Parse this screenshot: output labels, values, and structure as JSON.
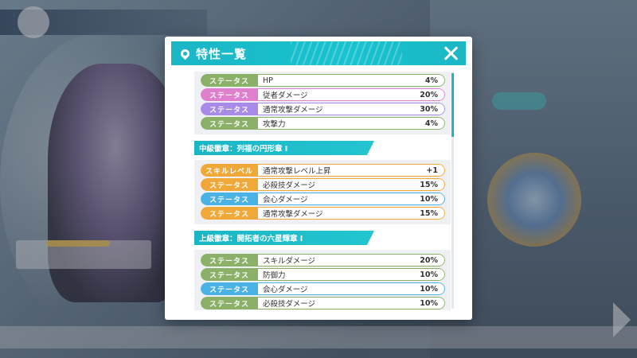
{
  "modal": {
    "title": "特性一覧"
  },
  "colors": {
    "accent": "#1bb6c6",
    "green": "#8bb068",
    "pink": "#e07fce",
    "purple": "#a88be8",
    "orange": "#f0a938",
    "blue": "#4bb2e6"
  },
  "groups": [
    {
      "header": "",
      "rows": [
        {
          "tag": "ステータス",
          "name": "HP",
          "value": "4%",
          "color": "#8bb068"
        },
        {
          "tag": "ステータス",
          "name": "従者ダメージ",
          "value": "20%",
          "color": "#e07fce"
        },
        {
          "tag": "ステータス",
          "name": "通常攻撃ダメージ",
          "value": "30%",
          "color": "#a88be8"
        },
        {
          "tag": "ステータス",
          "name": "攻撃力",
          "value": "4%",
          "color": "#8bb068"
        }
      ]
    },
    {
      "header": "中級徽章：列福の円形章 Ⅰ",
      "rows": [
        {
          "tag": "スキルレベル",
          "name": "通常攻撃レベル上昇",
          "value": "+1",
          "color": "#f0a938"
        },
        {
          "tag": "ステータス",
          "name": "必殺技ダメージ",
          "value": "15%",
          "color": "#f0a938"
        },
        {
          "tag": "ステータス",
          "name": "会心ダメージ",
          "value": "10%",
          "color": "#4bb2e6"
        },
        {
          "tag": "ステータス",
          "name": "通常攻撃ダメージ",
          "value": "15%",
          "color": "#f0a938"
        }
      ]
    },
    {
      "header": "上級徽章：開拓者の六星輝章 Ⅰ",
      "rows": [
        {
          "tag": "ステータス",
          "name": "スキルダメージ",
          "value": "20%",
          "color": "#8bb068"
        },
        {
          "tag": "ステータス",
          "name": "防御力",
          "value": "10%",
          "color": "#8bb068"
        },
        {
          "tag": "ステータス",
          "name": "会心ダメージ",
          "value": "10%",
          "color": "#4bb2e6"
        },
        {
          "tag": "ステータス",
          "name": "必殺技ダメージ",
          "value": "10%",
          "color": "#8bb068"
        }
      ]
    }
  ]
}
